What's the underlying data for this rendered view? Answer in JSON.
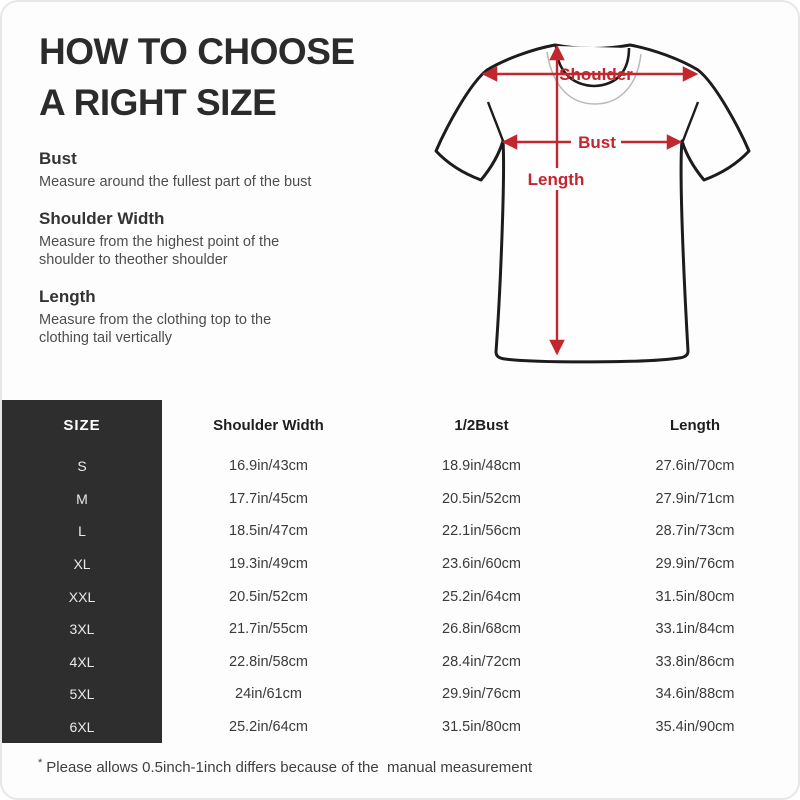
{
  "title": {
    "line1": "HOW TO CHOOSE",
    "line2": "A RIGHT SIZE"
  },
  "instructions": [
    {
      "heading": "Bust",
      "line1": "Measure around the fullest part of the bust",
      "line2": ""
    },
    {
      "heading": "Shoulder Width",
      "line1": "Measure from the highest point of the",
      "line2": "shoulder to theother shoulder"
    },
    {
      "heading": "Length",
      "line1": "Measure from the clothing top to the",
      "line2": "clothing tail vertically"
    }
  ],
  "diagram": {
    "shoulder_label": "Shoulder",
    "bust_label": "Bust",
    "length_label": "Length",
    "arrow_color": "#c2262e",
    "outline_color": "#1c1c1c",
    "shirt_fill": "#fefefe"
  },
  "size_table": {
    "header_bg": "#2e2e2e",
    "headers": [
      "SIZE",
      "Shoulder Width",
      "1/2Bust",
      "Length"
    ],
    "rows": [
      [
        "S",
        "16.9in/43cm",
        "18.9in/48cm",
        "27.6in/70cm"
      ],
      [
        "M",
        "17.7in/45cm",
        "20.5in/52cm",
        "27.9in/71cm"
      ],
      [
        "L",
        "18.5in/47cm",
        "22.1in/56cm",
        "28.7in/73cm"
      ],
      [
        "XL",
        "19.3in/49cm",
        "23.6in/60cm",
        "29.9in/76cm"
      ],
      [
        "XXL",
        "20.5in/52cm",
        "25.2in/64cm",
        "31.5in/80cm"
      ],
      [
        "3XL",
        "21.7in/55cm",
        "26.8in/68cm",
        "33.1in/84cm"
      ],
      [
        "4XL",
        "22.8in/58cm",
        "28.4in/72cm",
        "33.8in/86cm"
      ],
      [
        "5XL",
        "24in/61cm",
        "29.9in/76cm",
        "34.6in/88cm"
      ],
      [
        "6XL",
        "25.2in/64cm",
        "31.5in/80cm",
        "35.4in/90cm"
      ]
    ]
  },
  "footnote": {
    "marker": "*",
    "text": "Please allows 0.5inch-1inch differs because of the  manual measurement"
  }
}
